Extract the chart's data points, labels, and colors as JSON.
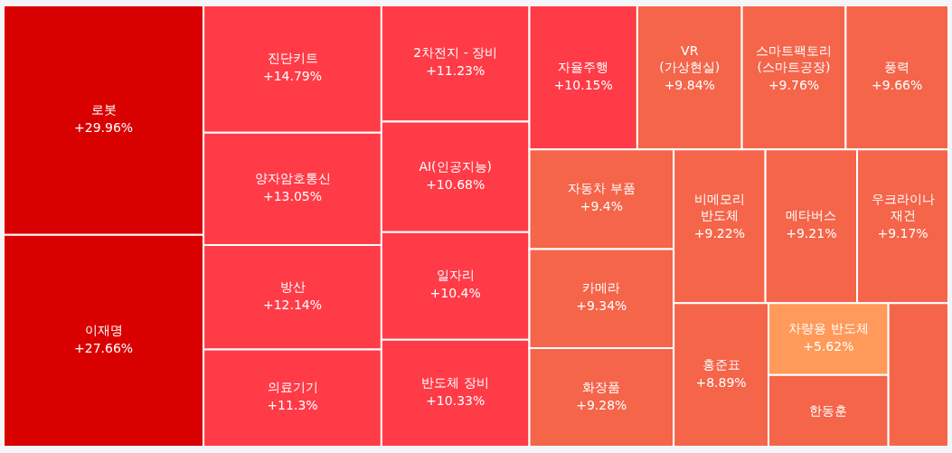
{
  "chart_data": {
    "type": "other",
    "categories": [
      "로봇",
      "이재명",
      "진단키트",
      "양자암호통신",
      "방산",
      "의료기기",
      "2차전지 - 장비",
      "AI(인공지능)",
      "일자리",
      "반도체 장비",
      "자율주행",
      "VR(가상현실)",
      "스마트팩토리(스마트공장)",
      "풍력",
      "자동차 부품",
      "카메라",
      "화장품",
      "비메모리 반도체",
      "메타버스",
      "우크라이나 재건",
      "홍준표",
      "차량용 반도체",
      "한동훈",
      null
    ],
    "values": [
      29.96,
      27.66,
      14.79,
      13.05,
      12.14,
      11.3,
      11.23,
      10.68,
      10.4,
      10.33,
      10.15,
      9.84,
      9.76,
      9.66,
      9.4,
      9.34,
      9.28,
      9.22,
      9.21,
      9.17,
      8.89,
      5.62,
      null,
      null
    ],
    "value_labels": [
      "+29.96%",
      "+27.66%",
      "+14.79%",
      "+13.05%",
      "+12.14%",
      "+11.3%",
      "+11.23%",
      "+10.68%",
      "+10.4%",
      "+10.33%",
      "+10.15%",
      "+9.84%",
      "+9.76%",
      "+9.66%",
      "+9.4%",
      "+9.34%",
      "+9.28%",
      "+9.22%",
      "+9.21%",
      "+9.17%",
      "+8.89%",
      "+5.62%",
      null,
      null
    ],
    "colors": [
      "#d90000",
      "#d90000",
      "#ff3b47",
      "#ff3b47",
      "#ff3b47",
      "#ff3b47",
      "#ff3b47",
      "#ff3b47",
      "#ff3b47",
      "#ff3b47",
      "#ff3b47",
      "#f4654a",
      "#f4654a",
      "#f4654a",
      "#f4654a",
      "#f4654a",
      "#f4654a",
      "#f4654a",
      "#f4654a",
      "#f4654a",
      "#f4654a",
      "#ff9a5a",
      "#f4654a",
      "#f4654a"
    ]
  }
}
